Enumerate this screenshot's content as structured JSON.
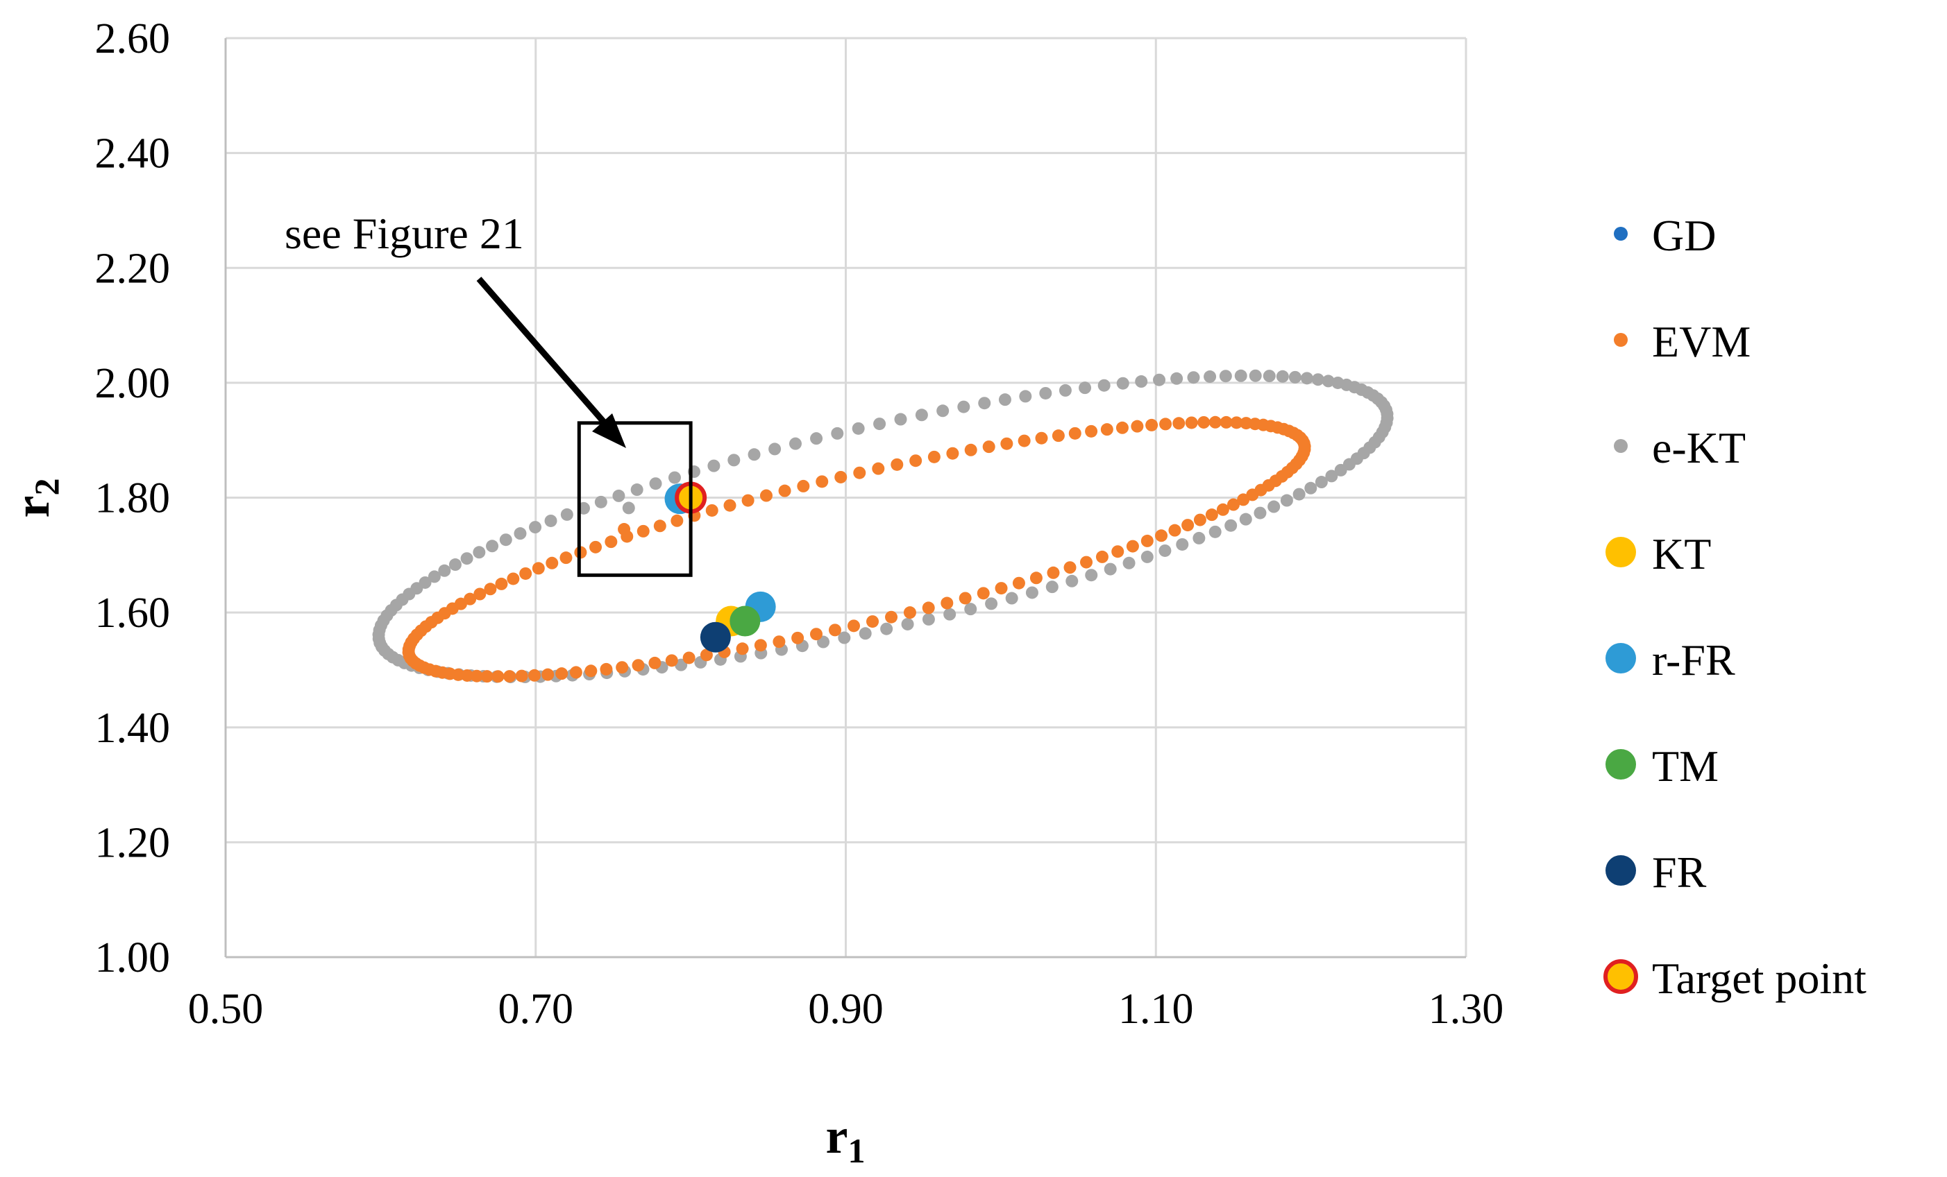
{
  "chart_data": {
    "type": "scatter",
    "title": "",
    "xlabel": "r",
    "xlabel_subscript": "1",
    "ylabel": "r",
    "ylabel_subscript": "2",
    "xlim": [
      0.5,
      1.3
    ],
    "ylim": [
      1.0,
      2.6
    ],
    "xticks": [
      "0.50",
      "0.70",
      "0.90",
      "1.10",
      "1.30"
    ],
    "yticks": [
      "1.00",
      "1.20",
      "1.40",
      "1.60",
      "1.80",
      "2.00",
      "2.20",
      "2.40",
      "2.60"
    ],
    "grid": true,
    "legend_position": "right",
    "series": [
      {
        "name": "GD",
        "color": "#1f6fc1",
        "marker": "small",
        "points": [
          [
            0.795,
            1.8
          ]
        ]
      },
      {
        "name": "EVM",
        "color": "#f37e2a",
        "marker": "dot",
        "contour": {
          "cx": 0.907,
          "cy": 1.71,
          "a": 0.347,
          "b": 0.11,
          "angle_deg": 35.7,
          "n": 150
        },
        "points": [
          [
            0.757,
            1.745
          ]
        ]
      },
      {
        "name": "e-KT",
        "color": "#a6a6a6",
        "marker": "dot",
        "contour": {
          "cx": 0.924,
          "cy": 1.75,
          "a": 0.39,
          "b": 0.15,
          "angle_deg": 36.7,
          "n": 150
        },
        "points": [
          [
            0.76,
            1.782
          ]
        ]
      },
      {
        "name": "KT",
        "color": "#ffc000",
        "marker": "large",
        "points": [
          [
            0.826,
            1.585
          ]
        ]
      },
      {
        "name": "r-FR",
        "color": "#2e9bd6",
        "marker": "large",
        "points": [
          [
            0.845,
            1.61
          ],
          [
            0.793,
            1.798
          ]
        ]
      },
      {
        "name": "TM",
        "color": "#4aa843",
        "marker": "large",
        "points": [
          [
            0.835,
            1.585
          ]
        ]
      },
      {
        "name": "FR",
        "color": "#0e3f73",
        "marker": "large",
        "points": [
          [
            0.816,
            1.557
          ]
        ]
      },
      {
        "name": "Target point",
        "color": "#ffc000",
        "edge": "#e02020",
        "marker": "target",
        "points": [
          [
            0.8,
            1.8
          ]
        ]
      }
    ],
    "annotations": [
      {
        "text": "see Figure 21",
        "box": {
          "x0": 0.728,
          "x1": 0.8,
          "y0": 1.665,
          "y1": 1.93
        }
      }
    ]
  }
}
